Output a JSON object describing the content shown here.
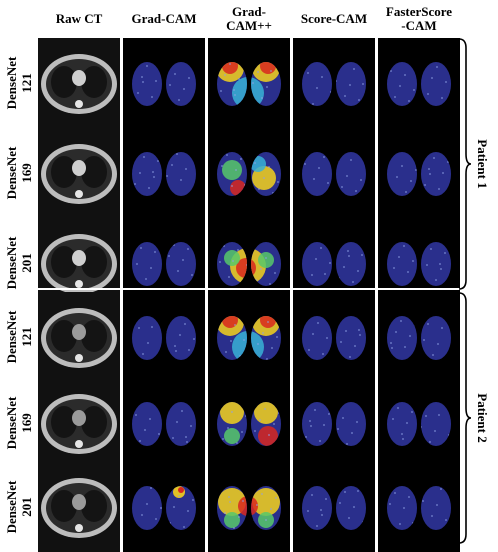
{
  "columns": [
    "Raw CT",
    "Grad-CAM",
    "Grad-\nCAM++",
    "Score-CAM",
    "FasterScore\n-CAM"
  ],
  "rows": [
    {
      "model": "DenseNet\n121",
      "patient": 1,
      "gradcampp": "upper"
    },
    {
      "model": "DenseNet\n169",
      "patient": 1,
      "gradcampp": "scattered"
    },
    {
      "model": "DenseNet\n201",
      "patient": 1,
      "gradcampp": "center"
    },
    {
      "model": "DenseNet\n121",
      "patient": 2,
      "gradcampp": "upper"
    },
    {
      "model": "DenseNet\n169",
      "patient": 2,
      "gradcampp": "upper-lower"
    },
    {
      "model": "DenseNet\n201",
      "patient": 2,
      "gradcampp": "full"
    }
  ],
  "groups": [
    {
      "label": "Patient 1",
      "rows": [
        0,
        1,
        2
      ]
    },
    {
      "label": "Patient 2",
      "rows": [
        3,
        4,
        5
      ]
    }
  ],
  "colors": {
    "lung_fill": "#2a2f8c",
    "lung_dark": "#1a1d6e",
    "heat_red": "#d8271e",
    "heat_yellow": "#f5d21c",
    "heat_green": "#57c86a",
    "heat_cyan": "#38b2d6",
    "background": "#000000",
    "ct_gray": "#bdbdbd"
  }
}
